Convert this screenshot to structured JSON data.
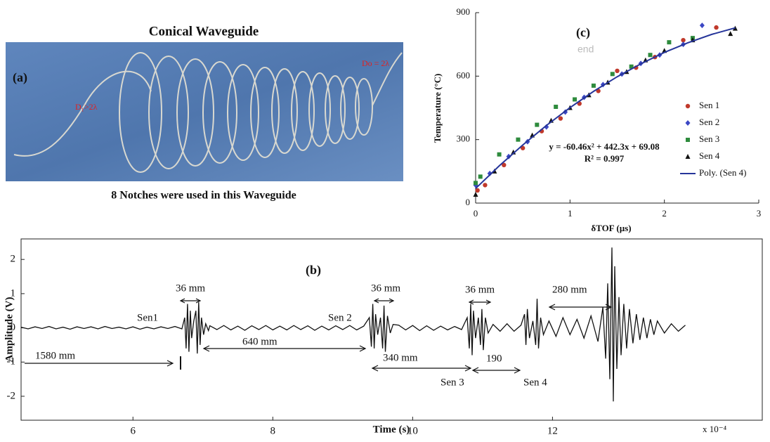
{
  "figure_a": {
    "title": "Conical Waveguide",
    "label": "(a)",
    "annotations": [
      "D₁>2λ",
      "Do = 2λ"
    ],
    "caption": "8 Notches were used in this Waveguide"
  },
  "chart_data": [
    {
      "type": "line",
      "label": "(b)",
      "xlabel": "Time (s)",
      "ylabel": "Amplitude (V)",
      "x_multiplier": "x 10⁻⁴",
      "xlim": [
        4.4,
        15.0
      ],
      "ylim": [
        -2.7,
        2.6
      ],
      "xticks": [
        6,
        8,
        10,
        12
      ],
      "yticks": [
        -2,
        -1,
        0,
        1,
        2
      ],
      "color": "#111111",
      "annotations": [
        "Sen1",
        "36 mm",
        "1580 mm",
        "640 mm",
        "Sen 2",
        "36 mm",
        "340 mm",
        "Sen 3",
        "36 mm",
        "190",
        "Sen 4",
        "280 mm"
      ],
      "x": [
        4.4,
        4.5,
        4.6,
        4.7,
        4.8,
        4.9,
        5.0,
        5.1,
        5.2,
        5.3,
        5.4,
        5.5,
        5.6,
        5.7,
        5.8,
        5.9,
        6.0,
        6.1,
        6.2,
        6.3,
        6.4,
        6.5,
        6.6,
        6.7,
        6.74,
        6.76,
        6.78,
        6.8,
        6.82,
        6.84,
        6.87,
        6.9,
        6.92,
        6.94,
        6.96,
        6.98,
        7.01,
        7.04,
        7.08,
        7.1,
        7.2,
        7.3,
        7.4,
        7.5,
        7.6,
        7.7,
        7.8,
        7.9,
        8.0,
        8.1,
        8.2,
        8.3,
        8.4,
        8.5,
        8.6,
        8.7,
        8.8,
        8.9,
        9.0,
        9.1,
        9.2,
        9.3,
        9.38,
        9.41,
        9.43,
        9.45,
        9.47,
        9.5,
        9.54,
        9.57,
        9.59,
        9.61,
        9.64,
        9.68,
        9.72,
        9.8,
        9.9,
        10.0,
        10.1,
        10.2,
        10.3,
        10.4,
        10.5,
        10.6,
        10.7,
        10.78,
        10.81,
        10.83,
        10.85,
        10.87,
        10.9,
        10.94,
        10.97,
        10.99,
        11.01,
        11.04,
        11.08,
        11.15,
        11.25,
        11.35,
        11.45,
        11.55,
        11.6,
        11.62,
        11.64,
        11.67,
        11.72,
        11.76,
        11.78,
        11.8,
        11.83,
        11.87,
        11.95,
        12.05,
        12.15,
        12.25,
        12.35,
        12.45,
        12.55,
        12.65,
        12.72,
        12.76,
        12.79,
        12.82,
        12.85,
        12.87,
        12.89,
        12.92,
        12.95,
        12.98,
        13.02,
        13.06,
        13.1,
        13.15,
        13.2,
        13.25,
        13.3,
        13.35,
        13.4,
        13.45,
        13.5,
        13.6,
        13.7,
        13.8,
        13.9
      ],
      "values": [
        0.02,
        -0.03,
        0.03,
        -0.02,
        0.04,
        -0.03,
        0.02,
        -0.04,
        0.03,
        -0.02,
        0.03,
        -0.03,
        0.04,
        -0.02,
        0.02,
        -0.03,
        0.03,
        -0.04,
        0.02,
        -0.03,
        0.03,
        -0.02,
        0.04,
        -0.03,
        0.3,
        -0.6,
        0.7,
        -0.7,
        0.5,
        -0.3,
        0.2,
        0.5,
        -0.75,
        0.75,
        -0.5,
        0.3,
        -0.2,
        0.12,
        -0.08,
        0.06,
        -0.05,
        0.07,
        -0.06,
        0.05,
        -0.07,
        0.06,
        -0.05,
        0.07,
        -0.06,
        0.05,
        -0.06,
        0.07,
        -0.05,
        0.06,
        -0.07,
        0.05,
        -0.06,
        0.06,
        -0.05,
        0.07,
        -0.06,
        0.05,
        0.3,
        -0.55,
        0.7,
        -0.6,
        0.4,
        -0.2,
        0.3,
        -0.6,
        0.65,
        -0.7,
        0.35,
        -0.15,
        0.1,
        0.08,
        -0.06,
        0.07,
        -0.08,
        0.06,
        -0.07,
        0.05,
        -0.06,
        0.04,
        -0.05,
        0.3,
        -0.6,
        0.7,
        -0.8,
        0.5,
        -0.3,
        0.3,
        -0.5,
        0.55,
        -0.65,
        0.3,
        -0.15,
        0.1,
        -0.1,
        0.12,
        -0.1,
        0.08,
        0.4,
        -0.5,
        0.55,
        -0.3,
        0.2,
        -0.5,
        0.85,
        -0.6,
        0.3,
        -0.2,
        0.2,
        -0.25,
        0.3,
        -0.2,
        0.25,
        -0.3,
        0.35,
        -0.4,
        0.6,
        -0.9,
        1.3,
        -1.5,
        2.35,
        -2.15,
        1.8,
        -1.2,
        0.9,
        -0.8,
        0.7,
        -0.6,
        0.55,
        -0.45,
        0.4,
        -0.35,
        0.3,
        -0.3,
        0.25,
        -0.2,
        0.2,
        -0.15,
        0.12,
        -0.1,
        0.08
      ]
    },
    {
      "type": "scatter",
      "label": "(c)",
      "xlabel": "δTOF (µs)",
      "ylabel": "Temperature (°C)",
      "annotations": [
        "end",
        "y = -60.46x² + 442.3x + 69.08",
        "R² = 0.997"
      ],
      "xlim": [
        0,
        3
      ],
      "ylim": [
        0,
        900
      ],
      "xticks": [
        0,
        1,
        2,
        3
      ],
      "yticks": [
        0,
        300,
        600,
        900
      ],
      "series": [
        {
          "name": "Sen 1",
          "color": "#c0392b",
          "marker": "circle",
          "x": [
            0.02,
            0.1,
            0.3,
            0.5,
            0.7,
            0.9,
            1.1,
            1.3,
            1.5,
            1.7,
            1.9,
            2.2,
            2.55
          ],
          "values": [
            60,
            85,
            180,
            260,
            340,
            400,
            470,
            530,
            625,
            640,
            690,
            770,
            830
          ]
        },
        {
          "name": "Sen 2",
          "color": "#3b47c4",
          "marker": "diamond",
          "x": [
            0.0,
            0.15,
            0.35,
            0.55,
            0.75,
            0.95,
            1.15,
            1.35,
            1.55,
            1.75,
            1.95,
            2.2,
            2.4
          ],
          "values": [
            85,
            140,
            220,
            290,
            360,
            430,
            500,
            560,
            610,
            660,
            700,
            750,
            840
          ]
        },
        {
          "name": "Sen 3",
          "color": "#2e8b3d",
          "marker": "square",
          "x": [
            0.0,
            0.05,
            0.25,
            0.45,
            0.65,
            0.85,
            1.05,
            1.25,
            1.45,
            1.65,
            1.85,
            2.05,
            2.3
          ],
          "values": [
            95,
            125,
            230,
            300,
            370,
            455,
            490,
            555,
            610,
            645,
            700,
            760,
            780
          ]
        },
        {
          "name": "Sen 4",
          "color": "#111111",
          "marker": "triangle",
          "x": [
            0.0,
            0.2,
            0.4,
            0.6,
            0.8,
            1.0,
            1.2,
            1.4,
            1.6,
            1.8,
            2.0,
            2.3,
            2.7,
            2.75
          ],
          "values": [
            40,
            150,
            240,
            320,
            390,
            450,
            510,
            570,
            620,
            675,
            720,
            770,
            800,
            825
          ]
        },
        {
          "name": "Poly. (Sen 4)",
          "color": "#26359a",
          "marker": "line",
          "x": [
            0,
            0.25,
            0.5,
            0.75,
            1,
            1.25,
            1.5,
            1.75,
            2,
            2.25,
            2.5,
            2.75
          ],
          "values": [
            69,
            176,
            275,
            367,
            451,
            528,
            597,
            658,
            712,
            758,
            797,
            828
          ]
        }
      ]
    }
  ]
}
